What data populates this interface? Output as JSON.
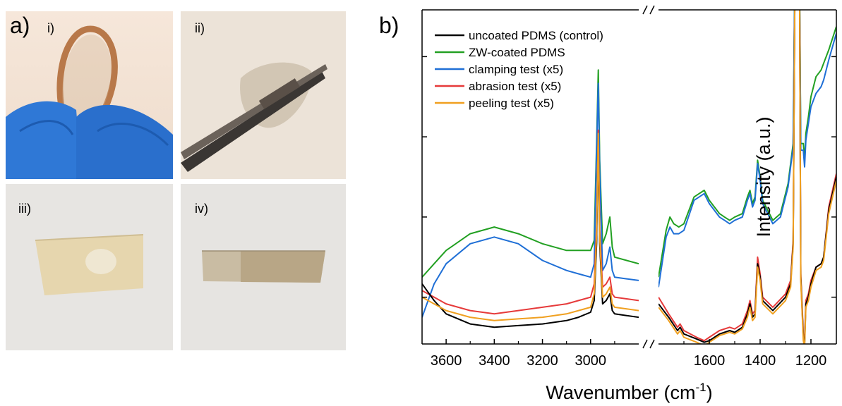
{
  "panel_a": {
    "letter": "a)",
    "photos": [
      {
        "label": "i)"
      },
      {
        "label": "ii)"
      },
      {
        "label": "iii)"
      },
      {
        "label": "iv)"
      }
    ]
  },
  "panel_b": {
    "letter": "b)"
  },
  "chart_data": {
    "type": "line",
    "title": "",
    "xlabel": "Wavenumber (cm",
    "xlabel_sup": "-1",
    "xlabel_close": ")",
    "ylabel": "Intensity (a.u.)",
    "broken_x_axis": true,
    "x_segments": [
      {
        "range": [
          3700,
          2800
        ],
        "ticks": [
          "3600",
          "3400",
          "3200",
          "3000"
        ],
        "tick_values": [
          3600,
          3400,
          3200,
          3000
        ]
      },
      {
        "range": [
          1800,
          1100
        ],
        "ticks": [
          "1600",
          "1400",
          "1200"
        ],
        "tick_values": [
          1600,
          1400,
          1200
        ]
      }
    ],
    "y_range": [
      0,
      100
    ],
    "y_ticks_unlabeled": [
      14,
      38,
      62,
      86
    ],
    "legend": {
      "placement": "top-left"
    },
    "series": [
      {
        "name": "uncoated PDMS (control)",
        "color": "#000000",
        "seg1": [
          [
            3700,
            18
          ],
          [
            3650,
            13
          ],
          [
            3600,
            9
          ],
          [
            3500,
            6
          ],
          [
            3400,
            5
          ],
          [
            3300,
            5.5
          ],
          [
            3200,
            6
          ],
          [
            3100,
            7
          ],
          [
            3050,
            8
          ],
          [
            3000,
            9.5
          ],
          [
            2985,
            13
          ],
          [
            2975,
            30
          ],
          [
            2968,
            61
          ],
          [
            2962,
            30
          ],
          [
            2950,
            12
          ],
          [
            2935,
            13
          ],
          [
            2920,
            15
          ],
          [
            2910,
            10
          ],
          [
            2900,
            9
          ],
          [
            2850,
            8.5
          ],
          [
            2800,
            8
          ]
        ],
        "seg2": [
          [
            1800,
            12
          ],
          [
            1760,
            8
          ],
          [
            1725,
            4
          ],
          [
            1715,
            5
          ],
          [
            1700,
            3
          ],
          [
            1650,
            1.5
          ],
          [
            1620,
            0.5
          ],
          [
            1600,
            1
          ],
          [
            1560,
            3
          ],
          [
            1520,
            4
          ],
          [
            1500,
            3.5
          ],
          [
            1470,
            5
          ],
          [
            1450,
            9
          ],
          [
            1440,
            12
          ],
          [
            1430,
            8
          ],
          [
            1420,
            9
          ],
          [
            1410,
            24
          ],
          [
            1400,
            20
          ],
          [
            1390,
            13
          ],
          [
            1350,
            10
          ],
          [
            1300,
            14
          ],
          [
            1280,
            18
          ],
          [
            1270,
            30
          ],
          [
            1262,
            120
          ],
          [
            1255,
            120
          ],
          [
            1245,
            110
          ],
          [
            1240,
            20
          ],
          [
            1230,
            2
          ],
          [
            1225,
            0
          ],
          [
            1220,
            12
          ],
          [
            1210,
            14
          ],
          [
            1200,
            18
          ],
          [
            1180,
            23
          ],
          [
            1160,
            24
          ],
          [
            1150,
            26
          ],
          [
            1130,
            40
          ],
          [
            1100,
            50
          ]
        ]
      },
      {
        "name": "ZW-coated PDMS",
        "color": "#22a022",
        "seg1": [
          [
            3700,
            20
          ],
          [
            3650,
            24
          ],
          [
            3600,
            28
          ],
          [
            3500,
            33
          ],
          [
            3400,
            35
          ],
          [
            3300,
            33
          ],
          [
            3200,
            30
          ],
          [
            3100,
            28
          ],
          [
            3050,
            28
          ],
          [
            3000,
            28
          ],
          [
            2985,
            31
          ],
          [
            2975,
            60
          ],
          [
            2968,
            82
          ],
          [
            2962,
            55
          ],
          [
            2950,
            30
          ],
          [
            2935,
            33
          ],
          [
            2920,
            38
          ],
          [
            2910,
            29
          ],
          [
            2900,
            26
          ],
          [
            2850,
            25
          ],
          [
            2800,
            24
          ]
        ],
        "seg2": [
          [
            1800,
            20
          ],
          [
            1770,
            34
          ],
          [
            1755,
            38
          ],
          [
            1740,
            36
          ],
          [
            1720,
            35
          ],
          [
            1700,
            36
          ],
          [
            1660,
            44
          ],
          [
            1640,
            45
          ],
          [
            1620,
            46
          ],
          [
            1600,
            43
          ],
          [
            1560,
            39
          ],
          [
            1540,
            38
          ],
          [
            1520,
            37
          ],
          [
            1500,
            38
          ],
          [
            1470,
            39
          ],
          [
            1450,
            44
          ],
          [
            1440,
            46
          ],
          [
            1430,
            42
          ],
          [
            1420,
            44
          ],
          [
            1410,
            55
          ],
          [
            1400,
            50
          ],
          [
            1390,
            43
          ],
          [
            1350,
            37
          ],
          [
            1320,
            39
          ],
          [
            1290,
            48
          ],
          [
            1270,
            60
          ],
          [
            1262,
            120
          ],
          [
            1255,
            120
          ],
          [
            1245,
            110
          ],
          [
            1240,
            60
          ],
          [
            1230,
            60
          ],
          [
            1225,
            55
          ],
          [
            1220,
            63
          ],
          [
            1210,
            68
          ],
          [
            1200,
            74
          ],
          [
            1180,
            80
          ],
          [
            1160,
            82
          ],
          [
            1150,
            84
          ],
          [
            1130,
            88
          ],
          [
            1100,
            95
          ]
        ]
      },
      {
        "name": "clamping test (x5)",
        "color": "#1f6fd6",
        "seg1": [
          [
            3700,
            8
          ],
          [
            3650,
            18
          ],
          [
            3600,
            24
          ],
          [
            3500,
            30
          ],
          [
            3400,
            32
          ],
          [
            3300,
            30
          ],
          [
            3200,
            25
          ],
          [
            3100,
            22
          ],
          [
            3050,
            21
          ],
          [
            3000,
            20
          ],
          [
            2985,
            24
          ],
          [
            2975,
            58
          ],
          [
            2968,
            78
          ],
          [
            2962,
            52
          ],
          [
            2950,
            22
          ],
          [
            2935,
            24
          ],
          [
            2920,
            29
          ],
          [
            2910,
            22
          ],
          [
            2900,
            20
          ],
          [
            2850,
            19.5
          ],
          [
            2800,
            19
          ]
        ],
        "seg2": [
          [
            1800,
            17
          ],
          [
            1770,
            32
          ],
          [
            1755,
            35
          ],
          [
            1740,
            33
          ],
          [
            1720,
            33
          ],
          [
            1700,
            34
          ],
          [
            1660,
            43
          ],
          [
            1640,
            44
          ],
          [
            1620,
            45
          ],
          [
            1600,
            42
          ],
          [
            1560,
            38
          ],
          [
            1540,
            37
          ],
          [
            1520,
            36
          ],
          [
            1500,
            37
          ],
          [
            1470,
            38
          ],
          [
            1450,
            43
          ],
          [
            1440,
            45
          ],
          [
            1430,
            41
          ],
          [
            1420,
            43
          ],
          [
            1410,
            54
          ],
          [
            1400,
            49
          ],
          [
            1390,
            42
          ],
          [
            1350,
            36
          ],
          [
            1320,
            38
          ],
          [
            1290,
            47
          ],
          [
            1270,
            59
          ],
          [
            1262,
            120
          ],
          [
            1255,
            120
          ],
          [
            1245,
            110
          ],
          [
            1240,
            58
          ],
          [
            1230,
            58
          ],
          [
            1225,
            53
          ],
          [
            1220,
            61
          ],
          [
            1210,
            66
          ],
          [
            1200,
            71
          ],
          [
            1180,
            75
          ],
          [
            1160,
            77
          ],
          [
            1150,
            79
          ],
          [
            1130,
            85
          ],
          [
            1100,
            93
          ]
        ]
      },
      {
        "name": "abrasion test (x5)",
        "color": "#e63a3a",
        "seg1": [
          [
            3700,
            16
          ],
          [
            3650,
            14
          ],
          [
            3600,
            12
          ],
          [
            3500,
            10
          ],
          [
            3400,
            9
          ],
          [
            3300,
            10
          ],
          [
            3200,
            11
          ],
          [
            3100,
            12
          ],
          [
            3050,
            13
          ],
          [
            3000,
            14
          ],
          [
            2985,
            18
          ],
          [
            2975,
            35
          ],
          [
            2968,
            64
          ],
          [
            2962,
            34
          ],
          [
            2950,
            17
          ],
          [
            2935,
            18
          ],
          [
            2920,
            20
          ],
          [
            2910,
            15
          ],
          [
            2900,
            14
          ],
          [
            2850,
            13.5
          ],
          [
            2800,
            13
          ]
        ],
        "seg2": [
          [
            1800,
            14
          ],
          [
            1760,
            9
          ],
          [
            1725,
            5
          ],
          [
            1715,
            6
          ],
          [
            1700,
            4
          ],
          [
            1650,
            2
          ],
          [
            1620,
            1
          ],
          [
            1600,
            2
          ],
          [
            1560,
            4
          ],
          [
            1520,
            5
          ],
          [
            1500,
            4.5
          ],
          [
            1470,
            6
          ],
          [
            1450,
            10
          ],
          [
            1440,
            13
          ],
          [
            1430,
            9
          ],
          [
            1420,
            10
          ],
          [
            1410,
            26
          ],
          [
            1400,
            21
          ],
          [
            1390,
            14
          ],
          [
            1350,
            11
          ],
          [
            1300,
            15
          ],
          [
            1280,
            19
          ],
          [
            1270,
            31
          ],
          [
            1262,
            120
          ],
          [
            1255,
            120
          ],
          [
            1245,
            110
          ],
          [
            1240,
            21
          ],
          [
            1230,
            3
          ],
          [
            1225,
            1
          ],
          [
            1220,
            13
          ],
          [
            1210,
            15
          ],
          [
            1200,
            19
          ],
          [
            1180,
            23
          ],
          [
            1160,
            24
          ],
          [
            1150,
            26
          ],
          [
            1130,
            41
          ],
          [
            1100,
            51
          ]
        ]
      },
      {
        "name": "peeling test (x5)",
        "color": "#f0a020",
        "seg1": [
          [
            3700,
            14
          ],
          [
            3650,
            12
          ],
          [
            3600,
            10
          ],
          [
            3500,
            8
          ],
          [
            3400,
            7
          ],
          [
            3300,
            7.5
          ],
          [
            3200,
            8
          ],
          [
            3100,
            9
          ],
          [
            3050,
            10
          ],
          [
            3000,
            11
          ],
          [
            2985,
            15
          ],
          [
            2975,
            33
          ],
          [
            2968,
            63
          ],
          [
            2962,
            32
          ],
          [
            2950,
            14
          ],
          [
            2935,
            15
          ],
          [
            2920,
            17
          ],
          [
            2910,
            12
          ],
          [
            2900,
            11
          ],
          [
            2850,
            10.5
          ],
          [
            2800,
            10
          ]
        ],
        "seg2": [
          [
            1800,
            11
          ],
          [
            1760,
            7
          ],
          [
            1725,
            3
          ],
          [
            1715,
            4
          ],
          [
            1700,
            2
          ],
          [
            1650,
            0.5
          ],
          [
            1620,
            -0.5
          ],
          [
            1600,
            0.5
          ],
          [
            1560,
            2.5
          ],
          [
            1520,
            3.5
          ],
          [
            1500,
            3
          ],
          [
            1470,
            4.5
          ],
          [
            1450,
            8
          ],
          [
            1440,
            11
          ],
          [
            1430,
            7
          ],
          [
            1420,
            8
          ],
          [
            1410,
            23
          ],
          [
            1400,
            19
          ],
          [
            1390,
            12
          ],
          [
            1350,
            9
          ],
          [
            1300,
            13
          ],
          [
            1280,
            17
          ],
          [
            1270,
            29
          ],
          [
            1262,
            120
          ],
          [
            1255,
            120
          ],
          [
            1245,
            110
          ],
          [
            1240,
            19
          ],
          [
            1230,
            1
          ],
          [
            1225,
            -1
          ],
          [
            1220,
            11
          ],
          [
            1210,
            13
          ],
          [
            1200,
            17
          ],
          [
            1180,
            22
          ],
          [
            1160,
            23
          ],
          [
            1150,
            25
          ],
          [
            1130,
            39
          ],
          [
            1100,
            49
          ]
        ]
      }
    ]
  }
}
